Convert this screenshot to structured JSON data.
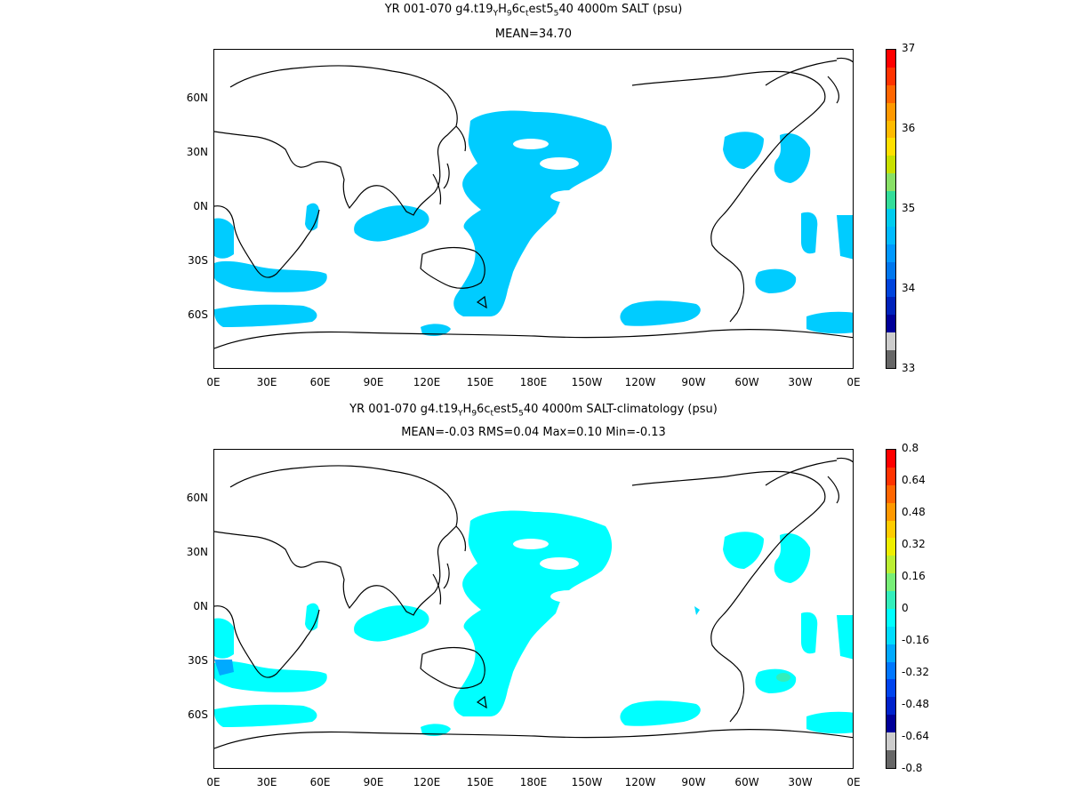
{
  "panels": [
    {
      "title_parts": {
        "prefix": "YR 001-070 g4.t19",
        "sub1": "Y",
        "mid1": "H",
        "sub2": "9",
        "mid2": "6c",
        "sub3": "t",
        "mid3": "est5",
        "sub4": "5",
        "suffix": "40 4000m SALT (psu)"
      },
      "stats": "MEAN=34.70",
      "colorbar": {
        "labels": [
          "37",
          "36",
          "35",
          "34",
          "33"
        ],
        "colors": [
          "#ff0000",
          "#ff3300",
          "#ff6600",
          "#ff9900",
          "#ffbb00",
          "#ffe000",
          "#c8e000",
          "#88e066",
          "#33dd99",
          "#00ccee",
          "#00bbff",
          "#0099ff",
          "#0077ee",
          "#0044dd",
          "#0022bb",
          "#000099",
          "#cccccc",
          "#666666"
        ]
      },
      "fill_color": "#00ccff"
    },
    {
      "title_parts": {
        "prefix": "YR 001-070 g4.t19",
        "sub1": "Y",
        "mid1": "H",
        "sub2": "9",
        "mid2": "6c",
        "sub3": "t",
        "mid3": "est5",
        "sub4": "5",
        "suffix": "40 4000m SALT-climatology (psu)"
      },
      "stats": "MEAN=-0.03   RMS=0.04   Max=0.10   Min=-0.13",
      "colorbar": {
        "labels": [
          "0.8",
          "0.64",
          "0.48",
          "0.32",
          "0.16",
          "0",
          "-0.16",
          "-0.32",
          "-0.48",
          "-0.64",
          "-0.8"
        ],
        "colors": [
          "#ff0000",
          "#ff3300",
          "#ff6600",
          "#ff9900",
          "#ffcc00",
          "#eeee00",
          "#bbee33",
          "#77ee77",
          "#33eebb",
          "#00ffff",
          "#00ddff",
          "#00aaff",
          "#0077ff",
          "#0044ee",
          "#0022cc",
          "#000099",
          "#cccccc",
          "#666666"
        ]
      },
      "fill_color": "#00ffff"
    }
  ],
  "axes": {
    "x_ticks": [
      "0E",
      "30E",
      "60E",
      "90E",
      "120E",
      "150E",
      "180E",
      "150W",
      "120W",
      "90W",
      "60W",
      "30W",
      "0E"
    ],
    "y_ticks": [
      "60N",
      "30N",
      "0N",
      "30S",
      "60S"
    ]
  }
}
